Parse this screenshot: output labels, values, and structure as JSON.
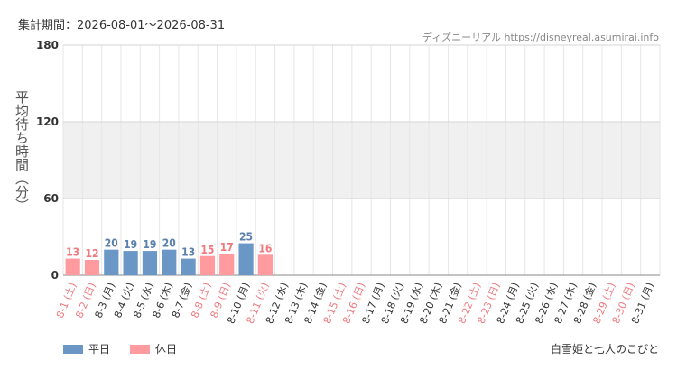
{
  "header": {
    "period": "集計期間：2026-08-01～2026-08-31",
    "credit": "ディズニーリアル https://disneyreal.asumirai.info"
  },
  "footer": {
    "attraction": "白雪姫と七人のこびと"
  },
  "colors": {
    "weekday": "#6b97c6",
    "holiday": "#ff9a9e",
    "weekday_text": "#5a80ac",
    "holiday_text": "#ee7a7f",
    "band": "#f0f0f0",
    "grid": "#e6e6e6"
  },
  "chart_data": {
    "type": "bar",
    "ylabel": "平均待ち時間（分）",
    "ylim": [
      0,
      180
    ],
    "yticks": [
      0,
      60,
      120,
      180
    ],
    "band": [
      60,
      120
    ],
    "grid": true,
    "legend": {
      "position": "bottom-left",
      "entries": [
        "平日",
        "休日"
      ]
    },
    "categories": [
      "8-1 (土)",
      "8-2 (日)",
      "8-3 (月)",
      "8-4 (火)",
      "8-5 (水)",
      "8-6 (木)",
      "8-7 (金)",
      "8-8 (土)",
      "8-9 (日)",
      "8-10 (月)",
      "8-11 (火)",
      "8-12 (水)",
      "8-13 (木)",
      "8-14 (金)",
      "8-15 (土)",
      "8-16 (日)",
      "8-17 (月)",
      "8-18 (火)",
      "8-19 (水)",
      "8-20 (木)",
      "8-21 (金)",
      "8-22 (土)",
      "8-23 (日)",
      "8-24 (月)",
      "8-25 (火)",
      "8-26 (水)",
      "8-27 (木)",
      "8-28 (金)",
      "8-29 (土)",
      "8-30 (日)",
      "8-31 (月)"
    ],
    "holiday": [
      true,
      true,
      false,
      false,
      false,
      false,
      false,
      true,
      true,
      false,
      true,
      false,
      false,
      false,
      true,
      true,
      false,
      false,
      false,
      false,
      false,
      true,
      true,
      false,
      false,
      false,
      false,
      false,
      true,
      true,
      false
    ],
    "series": [
      {
        "values": [
          13,
          12,
          20,
          19,
          19,
          20,
          13,
          15,
          17,
          25,
          16,
          null,
          null,
          null,
          null,
          null,
          null,
          null,
          null,
          null,
          null,
          null,
          null,
          null,
          null,
          null,
          null,
          null,
          null,
          null,
          null
        ]
      }
    ]
  }
}
